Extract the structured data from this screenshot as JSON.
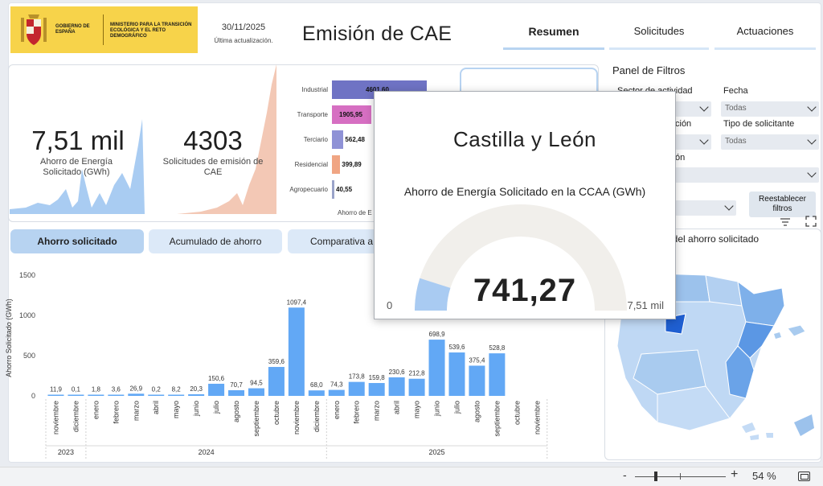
{
  "header": {
    "gov_name": "GOBIERNO DE ESPAÑA",
    "ministry": "MINISTERIO PARA LA TRANSICIÓN ECOLÓGICA Y EL RETO DEMOGRÁFICO",
    "date": "30/11/2025",
    "date_label": "Última actualización.",
    "title": "Emisión de CAE"
  },
  "nav": {
    "tabs": [
      {
        "label": "Resumen",
        "active": true
      },
      {
        "label": "Solicitudes",
        "active": false
      },
      {
        "label": "Actuaciones",
        "active": false
      }
    ]
  },
  "kpis": {
    "ahorro": {
      "value": "7,51 mil",
      "label": "Ahorro de Energía Solicitado (GWh)"
    },
    "solicitudes": {
      "value": "4303",
      "label": "Solicitudes de emisión de CAE"
    }
  },
  "sector_chart": {
    "axis_fragment": "Ahorro de E",
    "bars": [
      {
        "label": "Industrial",
        "value": "4601,60",
        "color": "#6f73c4"
      },
      {
        "label": "Transporte",
        "value": "1905,95",
        "color": "#d66fc2"
      },
      {
        "label": "Terciario",
        "value": "562,48",
        "color": "#8f92d6"
      },
      {
        "label": "Residencial",
        "value": "399,89",
        "color": "#f0a583"
      },
      {
        "label": "Agropecuario",
        "value": "40,55",
        "color": "#9aa3c9"
      }
    ]
  },
  "filters": {
    "title": "Panel de Filtros",
    "sector_label": "Sector de actividad",
    "fecha_label": "Fecha",
    "fecha_value": "Todas",
    "tipo_label": "Tipo de solicitante",
    "tipo_value": "Todas",
    "ccaa_fragment": "ción",
    "ccaa2_fragment": "ón",
    "reset_label": "Reestablecer filtros"
  },
  "segments": [
    {
      "label": "Ahorro solicitado",
      "active": true
    },
    {
      "label": "Acumulado de ahorro",
      "active": false
    },
    {
      "label": "Comparativa a",
      "active": false
    }
  ],
  "map": {
    "title_fragment": "ica del ahorro solicitado",
    "highlight_color": "#1f5fd1"
  },
  "tooltip": {
    "region": "Castilla y León",
    "subtitle": "Ahorro de Energía Solicitado en la CCAA (GWh)",
    "value": "741,27",
    "min_label": "0",
    "max_label": "7,51 mil",
    "gauge_fraction": 0.0987
  },
  "chart_data": {
    "type": "bar",
    "ylabel": "Ahorro Solicitado (GWh)",
    "ylim": [
      0,
      1500
    ],
    "yticks": [
      "0",
      "500",
      "1000",
      "1500"
    ],
    "categories": [
      "noviembre",
      "diciembre",
      "enero",
      "febrero",
      "marzo",
      "abril",
      "mayo",
      "junio",
      "julio",
      "agosto",
      "septiembre",
      "octubre",
      "noviembre",
      "diciembre",
      "enero",
      "febrero",
      "marzo",
      "abril",
      "mayo",
      "junio",
      "julio",
      "agosto",
      "septiembre",
      "octubre",
      "noviembre"
    ],
    "values": [
      11.9,
      0.1,
      1.8,
      3.6,
      26.9,
      0.2,
      8.2,
      20.3,
      150.6,
      70.7,
      94.5,
      359.6,
      1097.4,
      68.0,
      74.3,
      173.8,
      159.8,
      230.6,
      212.8,
      698.9,
      539.6,
      375.4,
      528.8,
      null,
      null
    ],
    "labels": [
      "11,9",
      "0,1",
      "1,8",
      "3,6",
      "26,9",
      "0,2",
      "8,2",
      "20,3",
      "150,6",
      "70,7",
      "94,5",
      "359,6",
      "1097,4",
      "68,0",
      "74,3",
      "173,8",
      "159,8",
      "230,6",
      "212,8",
      "698,9",
      "539,6",
      "375,4",
      "528,8",
      "",
      ""
    ],
    "years": [
      {
        "label": "2023",
        "span": 2
      },
      {
        "label": "2024",
        "span": 12
      },
      {
        "label": "2025",
        "span": 11
      }
    ],
    "bar_color": "#62a8f5",
    "grid": false
  },
  "statusbar": {
    "zoom_minus": "-",
    "zoom_plus": "+",
    "zoom_level": "54 %"
  }
}
